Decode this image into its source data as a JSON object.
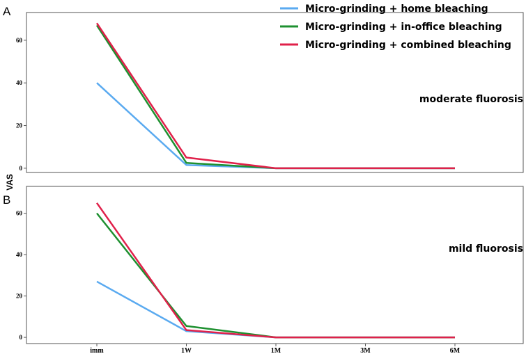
{
  "chart_data": [
    {
      "type": "line",
      "panel_label": "A",
      "annotation": "moderate fluorosis",
      "ylabel": "VAS",
      "categories": [
        "imm",
        "1W",
        "1M",
        "3M",
        "6M"
      ],
      "y_ticks": [
        0,
        20,
        40,
        60
      ],
      "ylim": [
        -2,
        73
      ],
      "grid": false,
      "series": [
        {
          "name": "Micro-grinding + home bleaching",
          "color": "#5aaaf0",
          "values": [
            40,
            1.5,
            0,
            0,
            0
          ]
        },
        {
          "name": "Micro-grinding + in-office bleaching",
          "color": "#1e9030",
          "values": [
            67,
            2.5,
            0,
            0,
            0
          ]
        },
        {
          "name": "Micro-grinding + combined bleaching",
          "color": "#e0204a",
          "values": [
            68,
            5,
            0,
            0,
            0
          ]
        }
      ]
    },
    {
      "type": "line",
      "panel_label": "B",
      "annotation": "mild fluorosis",
      "categories": [
        "imm",
        "1W",
        "1M",
        "3M",
        "6M"
      ],
      "y_ticks": [
        0,
        20,
        40,
        60
      ],
      "ylim": [
        -3,
        73
      ],
      "grid": false,
      "series": [
        {
          "name": "Micro-grinding + home bleaching",
          "color": "#5aaaf0",
          "values": [
            27,
            3,
            0,
            0,
            0
          ]
        },
        {
          "name": "Micro-grinding + in-office bleaching",
          "color": "#1e9030",
          "values": [
            60,
            5.5,
            0,
            0,
            0
          ]
        },
        {
          "name": "Micro-grinding + combined bleaching",
          "color": "#e0204a",
          "values": [
            65,
            3.5,
            0,
            0,
            0
          ]
        }
      ]
    }
  ],
  "legend": [
    {
      "label": "Micro-grinding + home bleaching",
      "color": "#5aaaf0"
    },
    {
      "label": "Micro-grinding + in-office bleaching",
      "color": "#1e9030"
    },
    {
      "label": "Micro-grinding + combined bleaching",
      "color": "#e0204a"
    }
  ]
}
